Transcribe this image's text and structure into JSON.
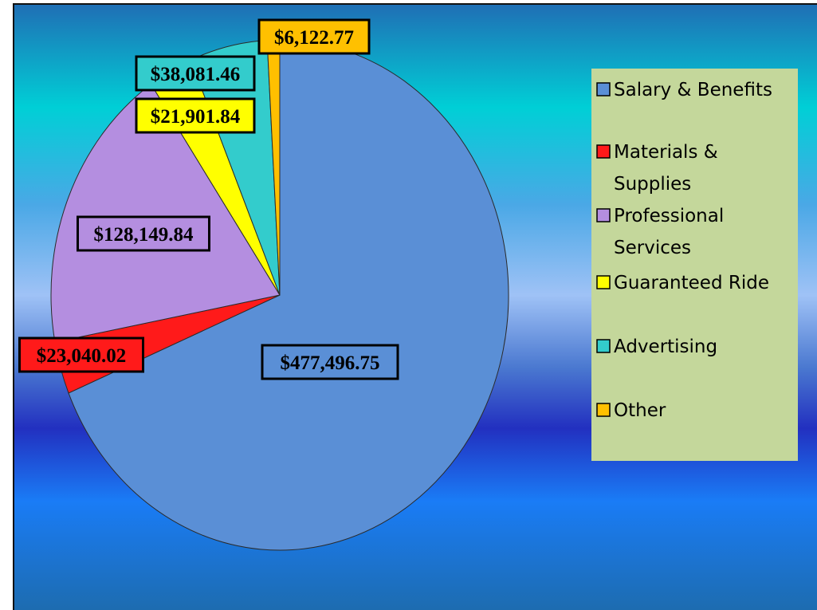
{
  "chart_data": {
    "type": "pie",
    "title": "",
    "start_angle_deg": 0,
    "direction": "clockwise",
    "legend_position": "right",
    "slices": [
      {
        "label": "Salary & Benefits",
        "value": 477496.75,
        "display": "$477,496.75",
        "color": "#5a8fd6"
      },
      {
        "label": "Materials & Supplies",
        "value": 23040.02,
        "display": "$23,040.02",
        "color": "#ff1a1a"
      },
      {
        "label": "Professional Services",
        "value": 128149.84,
        "display": "$128,149.84",
        "color": "#b48ee0"
      },
      {
        "label": "Guaranteed Ride",
        "value": 21901.84,
        "display": "$21,901.84",
        "color": "#ffff00"
      },
      {
        "label": "Advertising",
        "value": 38081.46,
        "display": "$38,081.46",
        "color": "#33cccc"
      },
      {
        "label": "Other",
        "value": 6122.77,
        "display": "$6,122.77",
        "color": "#ffc000"
      }
    ],
    "legend_lines": [
      [
        "Salary & Benefits"
      ],
      [
        "Materials &",
        "Supplies"
      ],
      [
        "Professional",
        "Services"
      ],
      [
        "Guaranteed Ride"
      ],
      [
        "Advertising"
      ],
      [
        "Other"
      ]
    ]
  },
  "colors": {
    "legend_background": "#c4d79b",
    "background_gradient": [
      "#1f6fb5",
      "#00c8d2",
      "#8fb8f5",
      "#2a3cc8",
      "#1a7cf0",
      "#1f6fb5"
    ]
  }
}
